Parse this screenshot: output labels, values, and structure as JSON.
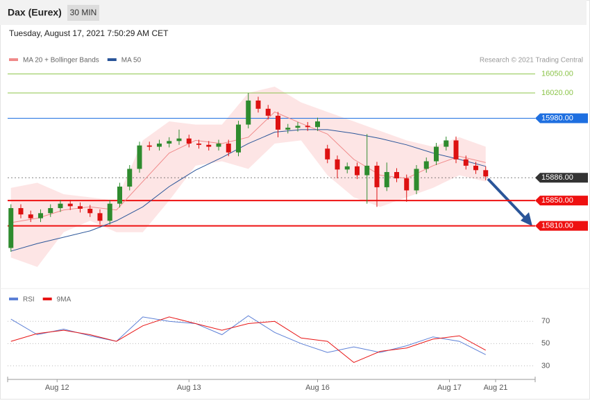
{
  "header": {
    "title": "Dax (Eurex)",
    "interval": "30 MIN",
    "date": "Tuesday, August 17, 2021 7:50:29 AM CET",
    "credit": "Research © 2021 Trading Central"
  },
  "chart_data": [
    {
      "type": "candlestick",
      "up_color": "#2e8b2e",
      "down_color": "#d11",
      "x": [
        1,
        4,
        7,
        10,
        13,
        16,
        19,
        22,
        25,
        28,
        31,
        34,
        37,
        40,
        43,
        46,
        49,
        52,
        55,
        58,
        61,
        64,
        67,
        70,
        73,
        76,
        79,
        82,
        85,
        88,
        91,
        94,
        97,
        100,
        103,
        106,
        109,
        112,
        115,
        118,
        121,
        124,
        127,
        130,
        133,
        136,
        139,
        142,
        145
      ],
      "open": [
        15775,
        15838,
        15828,
        15822,
        15830,
        15838,
        15845,
        15841,
        15837,
        15830,
        15818,
        15845,
        15872,
        15900,
        15937,
        15935,
        15940,
        15944,
        15948,
        15940,
        15938,
        15935,
        15940,
        15926,
        15970,
        16008,
        15995,
        15984,
        15962,
        15965,
        15968,
        15966,
        15932,
        15915,
        15899,
        15904,
        15890,
        15905,
        15871,
        15895,
        15885,
        15866,
        15900,
        15912,
        15935,
        15945,
        15915,
        15905,
        15898
      ],
      "high": [
        15844,
        15844,
        15834,
        15836,
        15844,
        15851,
        15851,
        15847,
        15843,
        15836,
        15851,
        15878,
        15906,
        15943,
        15943,
        15946,
        15950,
        15962,
        15954,
        15946,
        15944,
        15946,
        15946,
        15976,
        16020,
        16014,
        16001,
        15990,
        15971,
        15974,
        15974,
        15981,
        15938,
        15921,
        15910,
        15910,
        15955,
        15911,
        15910,
        15901,
        15891,
        15906,
        15918,
        15941,
        15951,
        15951,
        15921,
        15911,
        15904
      ],
      "low": [
        15769,
        15822,
        15816,
        15816,
        15824,
        15832,
        15835,
        15831,
        15824,
        15812,
        15812,
        15839,
        15866,
        15894,
        15929,
        15929,
        15934,
        15938,
        15934,
        15932,
        15929,
        15929,
        15920,
        15920,
        15964,
        15989,
        15978,
        15950,
        15956,
        15959,
        15960,
        15960,
        15909,
        15885,
        15893,
        15884,
        15845,
        15840,
        15865,
        15879,
        15848,
        15860,
        15894,
        15906,
        15929,
        15909,
        15899,
        15892,
        15882
      ],
      "close": [
        15838,
        15828,
        15822,
        15830,
        15838,
        15845,
        15841,
        15837,
        15830,
        15818,
        15845,
        15872,
        15900,
        15937,
        15935,
        15940,
        15944,
        15948,
        15940,
        15938,
        15935,
        15940,
        15926,
        15970,
        16008,
        15995,
        15984,
        15962,
        15965,
        15968,
        15966,
        15975,
        15915,
        15899,
        15904,
        15890,
        15905,
        15871,
        15895,
        15885,
        15866,
        15900,
        15912,
        15935,
        15945,
        15915,
        15905,
        15898,
        15888
      ],
      "series": [
        {
          "name": "MA 20 + Bollinger Bands",
          "color": "#f08a8a",
          "band_color": "#fde0e0",
          "x": [
            1,
            9,
            17,
            25,
            33,
            41,
            49,
            57,
            65,
            73,
            81,
            89,
            97,
            105,
            113,
            121,
            129,
            137,
            145
          ],
          "values": [
            15815,
            15822,
            15835,
            15840,
            15835,
            15880,
            15925,
            15945,
            15940,
            15950,
            15990,
            15972,
            15955,
            15915,
            15890,
            15885,
            15905,
            15920,
            15910
          ],
          "band_upper": [
            15870,
            15878,
            15860,
            15855,
            15850,
            15945,
            15975,
            15970,
            15970,
            16020,
            16030,
            16005,
            15990,
            15975,
            15960,
            15945,
            15935,
            15950,
            15935
          ],
          "band_lower": [
            15760,
            15745,
            15800,
            15818,
            15800,
            15800,
            15850,
            15905,
            15912,
            15900,
            15940,
            15945,
            15890,
            15855,
            15840,
            15855,
            15870,
            15890,
            15880
          ]
        },
        {
          "name": "MA 50",
          "color": "#2a5599",
          "x": [
            1,
            9,
            17,
            25,
            33,
            41,
            49,
            57,
            65,
            73,
            81,
            89,
            97,
            105,
            113,
            121,
            129,
            137,
            145
          ],
          "values": [
            15770,
            15782,
            15792,
            15802,
            15818,
            15840,
            15872,
            15898,
            15918,
            15940,
            15958,
            15962,
            15962,
            15956,
            15948,
            15938,
            15925,
            15915,
            15904
          ]
        }
      ],
      "levels": [
        {
          "value": 16050,
          "label": "16050.00",
          "color": "#8cc44a",
          "boxed": false,
          "width": 1,
          "dashed": false
        },
        {
          "value": 16020,
          "label": "16020.00",
          "color": "#8cc44a",
          "boxed": false,
          "width": 1,
          "dashed": false
        },
        {
          "value": 15980,
          "label": "15980.00",
          "color": "#1e6fe0",
          "boxed": true,
          "width": 1,
          "dashed": false
        },
        {
          "value": 15886,
          "label": "15886.00",
          "color": "#333333",
          "boxed": true,
          "width": 1,
          "dashed": true
        },
        {
          "value": 15850,
          "label": "15850.00",
          "color": "#ee1111",
          "boxed": true,
          "width": 2,
          "dashed": false
        },
        {
          "value": 15810,
          "label": "15810.00",
          "color": "#ee1111",
          "boxed": true,
          "width": 2,
          "dashed": false
        }
      ],
      "xlim": [
        0,
        160
      ],
      "ylim": [
        15735,
        16100
      ]
    },
    {
      "type": "line",
      "x": [
        1,
        9,
        17,
        25,
        33,
        41,
        49,
        57,
        65,
        73,
        81,
        89,
        97,
        105,
        113,
        121,
        129,
        137,
        145
      ],
      "series": [
        {
          "name": "RSI",
          "color": "#5b7fd6",
          "values": [
            72,
            58,
            63,
            57,
            52,
            74,
            70,
            68,
            58,
            75,
            60,
            50,
            42,
            47,
            42,
            48,
            56,
            52,
            40
          ]
        },
        {
          "name": "9MA",
          "color": "#e81414",
          "values": [
            52,
            59,
            62,
            58,
            52,
            66,
            74,
            68,
            62,
            68,
            70,
            55,
            52,
            33,
            43,
            46,
            54,
            57,
            44
          ]
        }
      ],
      "xlim": [
        0,
        160
      ],
      "ylim": [
        19,
        97
      ],
      "yticks": [
        30,
        50,
        70
      ],
      "xticks": [
        {
          "value": 15,
          "label": "Aug 12"
        },
        {
          "value": 55,
          "label": "Aug 13"
        },
        {
          "value": 94,
          "label": "Aug 16"
        },
        {
          "value": 134,
          "label": "Aug 17"
        },
        {
          "value": 148,
          "label": "Aug 21"
        }
      ]
    }
  ]
}
